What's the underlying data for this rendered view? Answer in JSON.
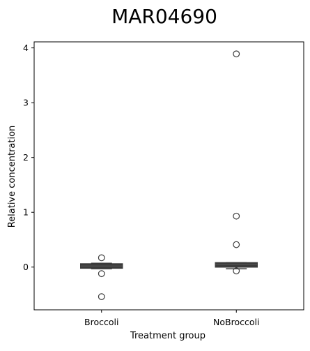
{
  "chart_data": {
    "type": "box",
    "title": "MAR04690",
    "xlabel": "Treatment group",
    "ylabel": "Relative concentration",
    "categories": [
      "Broccoli",
      "NoBroccoli"
    ],
    "ylim": [
      -0.78,
      4.11
    ],
    "yticks": [
      0,
      1,
      2,
      3,
      4
    ],
    "boxes": [
      {
        "category": "Broccoli",
        "q1": -0.02,
        "median": 0.02,
        "q3": 0.06,
        "whisker_low": -0.03,
        "whisker_high": 0.07,
        "outliers": [
          0.17,
          -0.12,
          -0.54
        ]
      },
      {
        "category": "NoBroccoli",
        "q1": 0.0,
        "median": 0.05,
        "q3": 0.08,
        "whisker_low": -0.03,
        "whisker_high": 0.08,
        "outliers": [
          3.89,
          0.93,
          0.41,
          -0.07
        ]
      }
    ],
    "colors": {
      "box_fill": "#3b3b3b",
      "box_edge": "#3b3b3b",
      "outlier_edge": "#3b3b3b",
      "axis": "#000000"
    },
    "grid": false,
    "legend": "none"
  }
}
